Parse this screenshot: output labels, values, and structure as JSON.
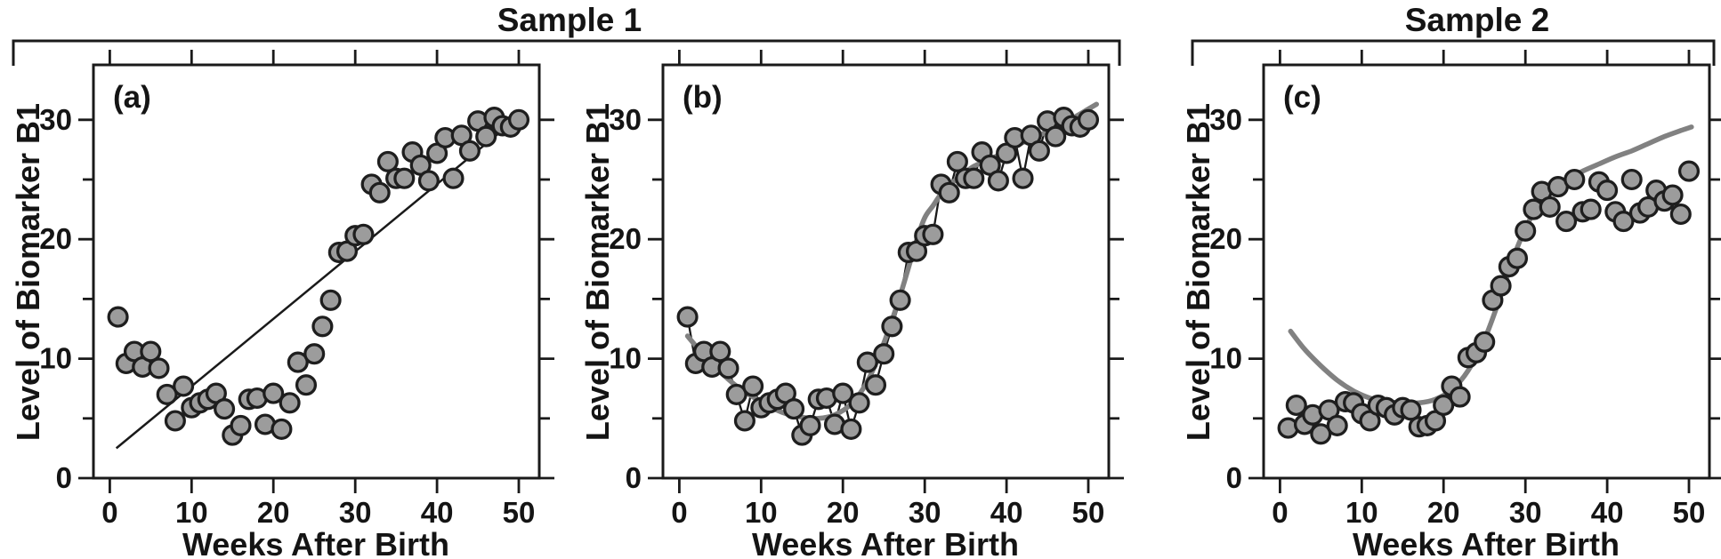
{
  "colors": {
    "background": "#ffffff",
    "point_fill": "#9c9c9c",
    "point_stroke": "#1e1e1e",
    "smooth_curve": "#818181",
    "thin_line": "#1a1a1a",
    "frame": "#1a1a1a",
    "text": "#141414"
  },
  "chart_data": {
    "type": "scatter",
    "title_groups": [
      {
        "label": "Sample 1",
        "span_panels": [
          "a",
          "b"
        ]
      },
      {
        "label": "Sample 2",
        "span_panels": [
          "c"
        ]
      }
    ],
    "xlabel": "Weeks After Birth",
    "ylabel": "Level of Biomarker B1",
    "x_ticks": [
      0,
      10,
      20,
      30,
      40,
      50
    ],
    "y_ticks": [
      0,
      10,
      20,
      30
    ],
    "y_minor_ticks": [
      5,
      15,
      25
    ],
    "xlim": [
      -2,
      52.5
    ],
    "ylim": [
      0,
      34.6
    ],
    "grid": "off",
    "weeks": [
      1,
      2,
      3,
      4,
      5,
      6,
      7,
      8,
      9,
      10,
      11,
      12,
      13,
      14,
      15,
      16,
      17,
      18,
      19,
      20,
      21,
      22,
      23,
      24,
      25,
      26,
      27,
      28,
      29,
      30,
      31,
      32,
      33,
      34,
      35,
      36,
      37,
      38,
      39,
      40,
      41,
      42,
      43,
      44,
      45,
      46,
      47,
      48,
      49,
      50
    ],
    "series": [
      {
        "name": "Sample 1",
        "panels": [
          "a",
          "b"
        ],
        "values": [
          13.5,
          9.6,
          10.6,
          9.3,
          10.6,
          9.2,
          7.0,
          4.8,
          7.7,
          5.9,
          6.3,
          6.6,
          7.1,
          5.8,
          3.6,
          4.4,
          6.6,
          6.7,
          4.5,
          7.1,
          4.1,
          6.3,
          9.7,
          7.8,
          10.4,
          12.7,
          14.9,
          18.9,
          19.0,
          20.3,
          20.4,
          24.6,
          23.9,
          26.5,
          25.1,
          25.1,
          27.3,
          26.2,
          24.9,
          27.2,
          28.5,
          25.1,
          28.7,
          27.4,
          29.9,
          28.6,
          30.2,
          29.5,
          29.4,
          30.0
        ]
      },
      {
        "name": "Sample 2",
        "panels": [
          "c"
        ],
        "values": [
          4.2,
          6.1,
          4.5,
          5.3,
          3.7,
          5.7,
          4.4,
          6.4,
          6.3,
          5.4,
          4.8,
          6.1,
          5.9,
          5.3,
          5.9,
          5.7,
          4.3,
          4.4,
          4.8,
          6.1,
          7.7,
          6.8,
          10.1,
          10.5,
          11.4,
          14.9,
          16.1,
          17.7,
          18.4,
          20.7,
          22.5,
          24.0,
          22.7,
          24.4,
          21.5,
          25.0,
          22.3,
          22.5,
          24.8,
          24.1,
          22.3,
          21.5,
          25.0,
          22.2,
          22.7,
          24.1,
          23.2,
          23.7,
          22.1,
          25.7
        ]
      }
    ],
    "panels": [
      {
        "id": "a",
        "label": "(a)",
        "series_name": "Sample 1",
        "fit_description": "straight line fit",
        "elements": [
          "points",
          "linear_fit_line"
        ]
      },
      {
        "id": "b",
        "label": "(b)",
        "series_name": "Sample 1",
        "fit_description": "point-to-point connecting line plus smooth sigmoid fit curve",
        "elements": [
          "points",
          "connecting_line",
          "smooth_curve"
        ],
        "curve_key": "smooth_curve_b"
      },
      {
        "id": "c",
        "label": "(c)",
        "series_name": "Sample 2",
        "fit_description": "smooth sigmoid curve (model from Sample 1) overlaid on new sample",
        "elements": [
          "points",
          "smooth_curve"
        ],
        "curve_key": "smooth_curve_c"
      }
    ],
    "linear_fit_line": {
      "x": [
        0.8,
        50.6
      ],
      "y": [
        2.5,
        30.6
      ]
    },
    "smooth_curve_b": {
      "x": [
        1,
        3,
        5,
        7,
        9,
        11,
        13,
        15,
        17,
        19,
        21,
        23,
        25,
        27,
        29,
        30,
        31,
        32,
        33,
        34,
        36,
        38,
        40,
        42,
        44,
        46,
        48,
        50,
        51
      ],
      "y": [
        11.9,
        10.3,
        8.9,
        7.7,
        6.8,
        6.0,
        5.4,
        5.1,
        5.0,
        5.3,
        6.2,
        8.1,
        11.3,
        15.3,
        19.9,
        21.8,
        22.8,
        23.8,
        24.5,
        25.1,
        26.1,
        26.7,
        27.4,
        28.1,
        28.7,
        29.4,
        30.1,
        30.9,
        31.3
      ]
    },
    "smooth_curve_c": {
      "x": [
        1.3,
        3,
        5,
        7,
        9,
        11,
        13,
        15,
        17,
        19,
        21,
        23,
        25,
        27,
        29,
        31,
        33,
        35,
        37,
        39,
        41,
        43,
        45,
        47,
        49,
        50.3
      ],
      "y": [
        12.3,
        10.8,
        9.4,
        8.2,
        7.3,
        6.7,
        6.4,
        6.3,
        6.3,
        6.6,
        7.4,
        9.0,
        11.6,
        15.3,
        19.3,
        22.2,
        23.9,
        25.0,
        25.7,
        26.3,
        26.9,
        27.4,
        28.0,
        28.6,
        29.1,
        29.4
      ]
    }
  }
}
